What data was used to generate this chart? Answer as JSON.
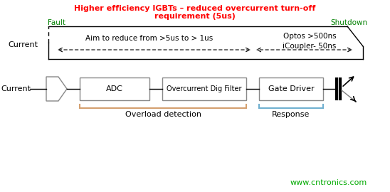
{
  "title_line1": "Higher efficiency IGBTs – reduced overcurrent turn-off",
  "title_line2": "requirement (5us)",
  "title_color": "red",
  "fault_label": "Fault",
  "shutdown_label": "Shutdown",
  "label_color": "green",
  "current_label_top": "Current",
  "current_label_bot": "Current",
  "aim_text": "Aim to reduce from >5us to > 1us",
  "optos_text": "Optos >500ns\niCoupler- 50ns",
  "adc_label": "ADC",
  "filter_label": "Overcurrent Dig Filter",
  "gate_label": "Gate Driver",
  "overload_text": "Overload detection",
  "response_text": "Response",
  "watermark": "www.cntronics.com",
  "watermark_color": "#00aa00",
  "bg_color": "white",
  "box_edge_color": "#888888",
  "overload_bracket_color": "#d4a070",
  "response_bracket_color": "#70b0d0"
}
